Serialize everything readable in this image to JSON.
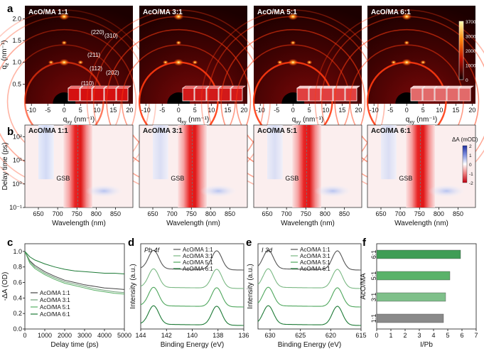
{
  "panels": {
    "a": {
      "label": "a",
      "titles": [
        "AcO/MA 1:1",
        "AcO/MA 3:1",
        "AcO/MA 5:1",
        "AcO/MA 6:1"
      ],
      "hkl": [
        "(220)",
        "(310)",
        "(211)",
        "(112)",
        "(202)",
        "(110)"
      ],
      "xlabel": "q",
      "xlabel_sub": "xy",
      "xlabel_unit": " (nm⁻¹)",
      "ylabel": "q",
      "ylabel_sub": "z",
      "ylabel_unit": " (nm⁻¹)",
      "xticks": [
        "-10",
        "-5",
        "0",
        "5",
        "10",
        "15",
        "20"
      ],
      "yticks": [
        "0.5",
        "1.0",
        "1.5",
        "2.0"
      ],
      "colorbar_ticks": [
        "3700",
        "3000",
        "2000",
        "1000",
        "0"
      ]
    },
    "b": {
      "label": "b",
      "titles": [
        "AcO/MA 1:1",
        "AcO/MA 3:1",
        "AcO/MA 5:1",
        "AcO/MA 6:1"
      ],
      "annotation": "GSB",
      "xlabel": "Wavelength (nm)",
      "ylabel": "Delay time (ps)",
      "xticks": [
        "650",
        "700",
        "750",
        "800",
        "850"
      ],
      "yticks": [
        "10²",
        "10¹",
        "10⁰",
        "10⁻¹"
      ],
      "colorbar_title": "ΔA (mOD)",
      "colorbar_ticks": [
        "2",
        "1",
        "0",
        "-1",
        "-2"
      ]
    },
    "c": {
      "label": "c"
    },
    "d": {
      "label": "d"
    },
    "e": {
      "label": "e"
    },
    "f": {
      "label": "f"
    }
  },
  "chart_data": [
    {
      "id": "c",
      "type": "line",
      "title": "",
      "xlabel": "Delay time (ps)",
      "ylabel": "-ΔA (OD)",
      "xlim": [
        0,
        5000
      ],
      "ylim": [
        0.0,
        1.1
      ],
      "xticks": [
        "0",
        "1000",
        "2000",
        "3000",
        "4000",
        "5000"
      ],
      "yticks": [
        "0.0",
        "0.2",
        "0.4",
        "0.6",
        "0.8",
        "1.0"
      ],
      "x": [
        0,
        250,
        500,
        1000,
        1500,
        2000,
        2500,
        3000,
        3500,
        4000,
        4500,
        5000
      ],
      "series": [
        {
          "name": "AcO/MA 1:1",
          "color": "#444444",
          "values": [
            1.0,
            0.88,
            0.82,
            0.74,
            0.68,
            0.63,
            0.6,
            0.57,
            0.55,
            0.53,
            0.52,
            0.51
          ]
        },
        {
          "name": "AcO/MA 3:1",
          "color": "#6f9f78",
          "values": [
            1.0,
            0.87,
            0.8,
            0.72,
            0.66,
            0.61,
            0.58,
            0.55,
            0.52,
            0.5,
            0.48,
            0.47
          ]
        },
        {
          "name": "AcO/MA 5:1",
          "color": "#58b065",
          "values": [
            1.0,
            0.85,
            0.78,
            0.7,
            0.64,
            0.59,
            0.56,
            0.53,
            0.5,
            0.48,
            0.46,
            0.45
          ]
        },
        {
          "name": "AcO/MA 6:1",
          "color": "#1d7a36",
          "values": [
            1.0,
            0.93,
            0.89,
            0.84,
            0.8,
            0.77,
            0.75,
            0.74,
            0.73,
            0.72,
            0.72,
            0.71
          ]
        }
      ]
    },
    {
      "id": "d",
      "type": "line",
      "title": "Pb 4f",
      "xlabel": "Binding Energy (eV)",
      "ylabel": "Intensity (a.u.)",
      "xlim": [
        144,
        136
      ],
      "xticks": [
        "144",
        "142",
        "140",
        "138",
        "136"
      ],
      "peaks": [
        143.0,
        138.1
      ],
      "series": [
        {
          "name": "AcO/MA 1:1",
          "color": "#555555"
        },
        {
          "name": "AcO/MA 3:1",
          "color": "#7ab883"
        },
        {
          "name": "AcO/MA 5:1",
          "color": "#4ea65c"
        },
        {
          "name": "AcO/MA 6:1",
          "color": "#1d7a36"
        }
      ]
    },
    {
      "id": "e",
      "type": "line",
      "title": "I 3d",
      "xlabel": "Binding Energy (eV)",
      "ylabel": "Intensity (a.u.)",
      "xlim": [
        632,
        615
      ],
      "xticks": [
        "630",
        "625",
        "620",
        "615"
      ],
      "peaks": [
        630.3,
        618.9
      ],
      "series": [
        {
          "name": "AcO/MA 1:1",
          "color": "#555555"
        },
        {
          "name": "AcO/MA 3:1",
          "color": "#7ab883"
        },
        {
          "name": "AcO/MA 5:1",
          "color": "#4ea65c"
        },
        {
          "name": "AcO/MA 6:1",
          "color": "#1d7a36"
        }
      ]
    },
    {
      "id": "f",
      "type": "bar",
      "orientation": "horizontal",
      "xlabel": "I/Pb",
      "ylabel": "AcO/MA",
      "xlim": [
        0,
        7
      ],
      "xticks": [
        "0",
        "1",
        "2",
        "3",
        "4",
        "5",
        "6",
        "7"
      ],
      "categories": [
        "1:1",
        "3:1",
        "5:1",
        "6:1"
      ],
      "values": [
        4.7,
        4.85,
        5.15,
        5.9
      ],
      "colors": [
        "#8a8a8a",
        "#7fc08a",
        "#5ab26a",
        "#3f9d55"
      ]
    }
  ]
}
